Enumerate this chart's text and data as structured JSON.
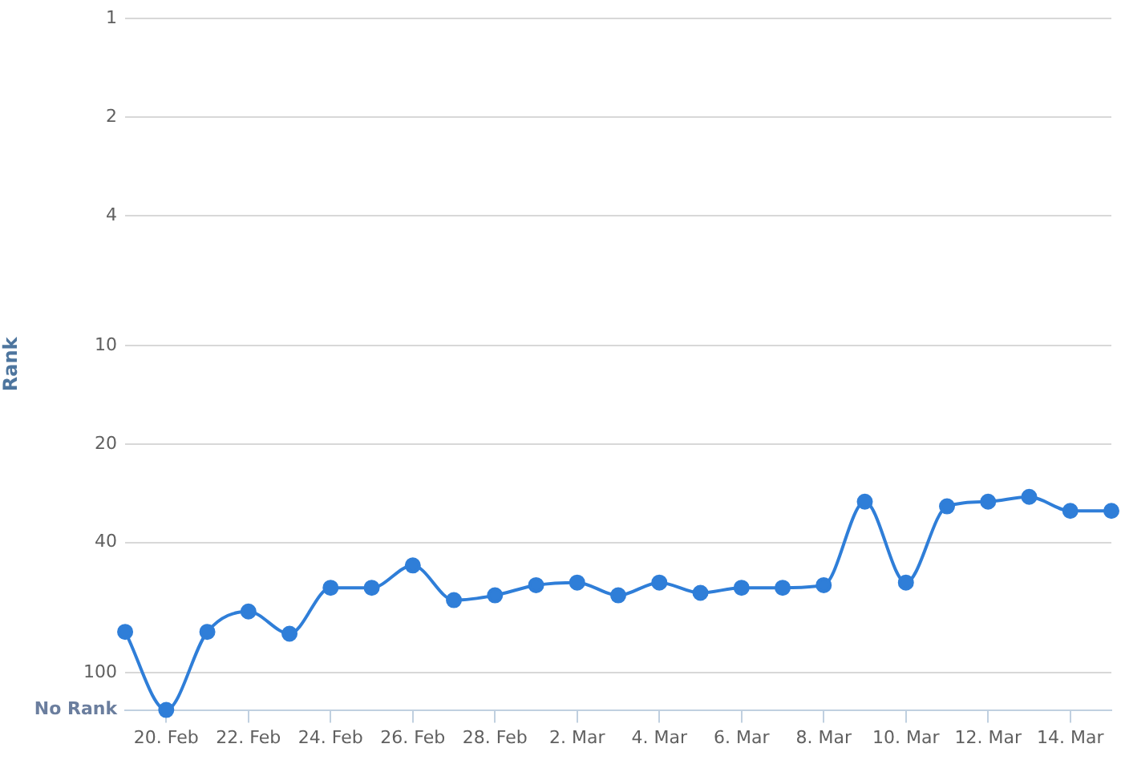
{
  "chart_data": {
    "type": "line",
    "ylabel": "Rank",
    "x": [
      "--02-19",
      "--02-20",
      "--02-21",
      "--02-22",
      "--02-23",
      "--02-24",
      "--02-25",
      "--02-26",
      "--02-27",
      "--02-28",
      "--03-01",
      "--03-02",
      "--03-03",
      "--03-04",
      "--03-05",
      "--03-06",
      "--03-07",
      "--03-08",
      "--03-09",
      "--03-10",
      "--03-11",
      "--03-12",
      "--03-13",
      "--03-14",
      "--03-15"
    ],
    "series": [
      {
        "color": "#2f7ed8",
        "values": [
          75,
          130,
          75,
          65,
          76,
          55,
          55,
          47,
          60,
          58,
          54,
          53,
          58,
          53,
          57,
          55,
          55,
          54,
          30,
          53,
          31,
          30,
          29,
          32,
          32
        ]
      }
    ],
    "xlim": [
      "--02-19",
      "--03-15"
    ],
    "xticks": [
      {
        "value": "--02-20",
        "label": "20. Feb"
      },
      {
        "value": "--02-22",
        "label": "22. Feb"
      },
      {
        "value": "--02-24",
        "label": "24. Feb"
      },
      {
        "value": "--02-26",
        "label": "26. Feb"
      },
      {
        "value": "--02-28",
        "label": "28. Feb"
      },
      {
        "value": "--03-02",
        "label": "2. Mar"
      },
      {
        "value": "--03-04",
        "label": "4. Mar"
      },
      {
        "value": "--03-06",
        "label": "6. Mar"
      },
      {
        "value": "--03-08",
        "label": "8. Mar"
      },
      {
        "value": "--03-10",
        "label": "10. Mar"
      },
      {
        "value": "--03-12",
        "label": "12. Mar"
      },
      {
        "value": "--03-14",
        "label": "14. Mar"
      }
    ],
    "ylim": [
      130,
      1
    ],
    "yticks": [
      1,
      2,
      4,
      10,
      20,
      40,
      100,
      {
        "value": 130,
        "label": "No Rank"
      }
    ],
    "log": "y",
    "grid": "y",
    "marker": "circle",
    "line_style": "solid",
    "legend": false
  }
}
